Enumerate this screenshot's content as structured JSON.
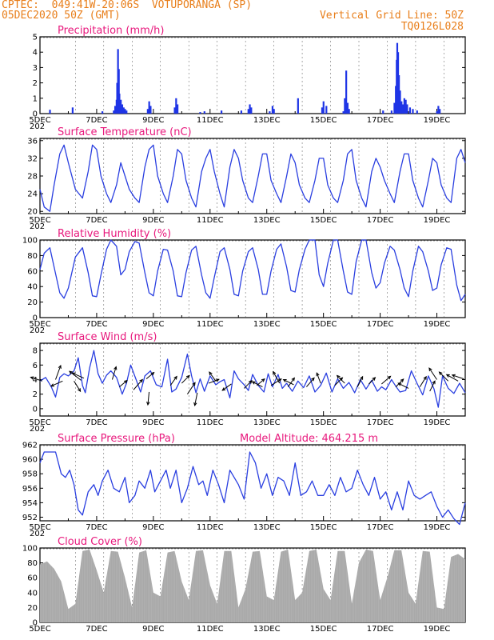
{
  "header": {
    "line1": "CPTEC:  049:41W-20:06S  VOTUPORANGA (SP)",
    "line2": "05DEC2020 50Z (GMT)",
    "right1": "Vertical Grid Line: 50Z",
    "right2": "TQ0126L028"
  },
  "x_labels": [
    "5DEC",
    "7DEC",
    "9DEC",
    "11DEC",
    "13DEC",
    "15DEC",
    "17DEC",
    "19DEC"
  ],
  "x_sublabel": "202",
  "colors": {
    "line": "#2a3fe0",
    "bar": "#1f35e6",
    "cloud": "#a9a9a9",
    "title": "#e8197d",
    "header": "#e87e1a",
    "arrow": "#000000"
  },
  "chart_data": [
    {
      "id": "precip",
      "type": "bar",
      "title": "Precipitation  (mm/h)",
      "ylim": [
        0,
        5
      ],
      "yticks": [
        0,
        1,
        2,
        3,
        4,
        5
      ],
      "x_unit": "days since 5DEC 00Z",
      "xlim": [
        0,
        15
      ],
      "bars": [
        [
          0.35,
          0.25
        ],
        [
          1.15,
          0.4
        ],
        [
          2.2,
          0.15
        ],
        [
          2.6,
          0.2
        ],
        [
          2.65,
          0.5
        ],
        [
          2.7,
          0.9
        ],
        [
          2.72,
          2.0
        ],
        [
          2.75,
          4.2
        ],
        [
          2.78,
          2.9
        ],
        [
          2.8,
          1.3
        ],
        [
          2.85,
          0.9
        ],
        [
          2.9,
          0.6
        ],
        [
          2.95,
          0.4
        ],
        [
          3.0,
          0.3
        ],
        [
          3.05,
          0.2
        ],
        [
          3.8,
          0.3
        ],
        [
          3.85,
          0.8
        ],
        [
          3.9,
          0.5
        ],
        [
          4.75,
          0.4
        ],
        [
          4.8,
          1.0
        ],
        [
          4.85,
          0.6
        ],
        [
          5.65,
          0.1
        ],
        [
          5.8,
          0.15
        ],
        [
          6.4,
          0.2
        ],
        [
          7.1,
          0.2
        ],
        [
          7.35,
          0.3
        ],
        [
          7.4,
          0.6
        ],
        [
          7.45,
          0.4
        ],
        [
          8.1,
          0.15
        ],
        [
          8.2,
          0.5
        ],
        [
          8.25,
          0.3
        ],
        [
          9.1,
          1.0
        ],
        [
          9.95,
          0.4
        ],
        [
          10.0,
          0.8
        ],
        [
          10.1,
          0.5
        ],
        [
          10.7,
          0.15
        ],
        [
          10.75,
          1.0
        ],
        [
          10.8,
          2.8
        ],
        [
          10.85,
          0.7
        ],
        [
          10.9,
          0.3
        ],
        [
          12.1,
          0.2
        ],
        [
          12.4,
          0.2
        ],
        [
          12.5,
          0.7
        ],
        [
          12.55,
          1.8
        ],
        [
          12.58,
          3.5
        ],
        [
          12.6,
          4.6
        ],
        [
          12.63,
          4.0
        ],
        [
          12.66,
          2.5
        ],
        [
          12.7,
          1.5
        ],
        [
          12.75,
          0.8
        ],
        [
          12.8,
          0.6
        ],
        [
          12.85,
          1.0
        ],
        [
          12.9,
          0.9
        ],
        [
          12.95,
          0.6
        ],
        [
          13.05,
          0.4
        ],
        [
          13.15,
          0.3
        ],
        [
          13.3,
          0.2
        ],
        [
          14.0,
          0.15
        ],
        [
          14.05,
          0.5
        ],
        [
          14.1,
          0.3
        ]
      ]
    },
    {
      "id": "temp",
      "type": "line",
      "title": "Surface Temperature (nC)",
      "ylim": [
        19.5,
        36.5
      ],
      "yticks": [
        20,
        24,
        28,
        32,
        36
      ],
      "x_unit": "days since 5DEC 00Z",
      "xlim": [
        0,
        15
      ],
      "x": [
        0,
        0.15,
        0.35,
        0.5,
        0.7,
        0.85,
        1.0,
        1.25,
        1.5,
        1.7,
        1.85,
        2.0,
        2.15,
        2.35,
        2.5,
        2.7,
        2.85,
        3.0,
        3.15,
        3.35,
        3.5,
        3.7,
        3.85,
        4.0,
        4.15,
        4.35,
        4.5,
        4.7,
        4.85,
        5.0,
        5.15,
        5.35,
        5.5,
        5.7,
        5.85,
        6.0,
        6.15,
        6.35,
        6.5,
        6.7,
        6.85,
        7.0,
        7.15,
        7.35,
        7.5,
        7.7,
        7.85,
        8.0,
        8.15,
        8.35,
        8.5,
        8.7,
        8.85,
        9.0,
        9.15,
        9.35,
        9.5,
        9.7,
        9.85,
        10.0,
        10.15,
        10.35,
        10.5,
        10.7,
        10.85,
        11.0,
        11.15,
        11.35,
        11.5,
        11.7,
        11.85,
        12.0,
        12.15,
        12.35,
        12.5,
        12.7,
        12.85,
        13.0,
        13.15,
        13.35,
        13.5,
        13.7,
        13.85,
        14.0,
        14.15,
        14.35,
        14.5,
        14.7,
        14.85,
        15.0
      ],
      "y": [
        25,
        21,
        20,
        26,
        33,
        35,
        31,
        25,
        23,
        29,
        35,
        34,
        28,
        24,
        22,
        26,
        31,
        28,
        25,
        23,
        22,
        30,
        34,
        35,
        28,
        24,
        22,
        28,
        34,
        33,
        27,
        23,
        21,
        29,
        32,
        34,
        29,
        24,
        21,
        30,
        34,
        32,
        27,
        23,
        22,
        28,
        33,
        33,
        27,
        24,
        22,
        28,
        33,
        31,
        26,
        23,
        22,
        27,
        32,
        32,
        26,
        23,
        22,
        27,
        33,
        34,
        27,
        23,
        21,
        29,
        32,
        30,
        27,
        24,
        22,
        29,
        33,
        33,
        27,
        23,
        21,
        27,
        32,
        31,
        26,
        23,
        22,
        32,
        34,
        31
      ]
    },
    {
      "id": "rh",
      "type": "line",
      "title": "Relative Humidity  (%)",
      "ylim": [
        0,
        100
      ],
      "yticks": [
        0,
        20,
        40,
        60,
        80,
        100
      ],
      "x_unit": "days since 5DEC 00Z",
      "xlim": [
        0,
        15
      ],
      "x": [
        0,
        0.15,
        0.35,
        0.5,
        0.7,
        0.85,
        1.0,
        1.25,
        1.5,
        1.7,
        1.85,
        2.0,
        2.15,
        2.35,
        2.5,
        2.7,
        2.85,
        3.0,
        3.15,
        3.35,
        3.5,
        3.7,
        3.85,
        4.0,
        4.15,
        4.35,
        4.5,
        4.7,
        4.85,
        5.0,
        5.15,
        5.35,
        5.5,
        5.7,
        5.85,
        6.0,
        6.15,
        6.35,
        6.5,
        6.7,
        6.85,
        7.0,
        7.15,
        7.35,
        7.5,
        7.7,
        7.85,
        8.0,
        8.15,
        8.35,
        8.5,
        8.7,
        8.85,
        9.0,
        9.15,
        9.35,
        9.5,
        9.7,
        9.85,
        10.0,
        10.15,
        10.35,
        10.5,
        10.7,
        10.85,
        11.0,
        11.15,
        11.35,
        11.5,
        11.7,
        11.85,
        12.0,
        12.15,
        12.35,
        12.5,
        12.7,
        12.85,
        13.0,
        13.15,
        13.35,
        13.5,
        13.7,
        13.85,
        14.0,
        14.15,
        14.35,
        14.5,
        14.7,
        14.85,
        15.0
      ],
      "y": [
        62,
        83,
        90,
        65,
        32,
        25,
        38,
        78,
        90,
        58,
        28,
        27,
        55,
        88,
        100,
        92,
        55,
        62,
        85,
        98,
        96,
        58,
        32,
        28,
        60,
        88,
        87,
        60,
        28,
        27,
        58,
        87,
        92,
        55,
        32,
        25,
        52,
        85,
        90,
        62,
        30,
        28,
        60,
        85,
        90,
        62,
        30,
        30,
        60,
        88,
        95,
        65,
        35,
        33,
        62,
        88,
        100,
        100,
        55,
        40,
        70,
        100,
        100,
        60,
        33,
        30,
        72,
        100,
        100,
        58,
        38,
        45,
        70,
        92,
        87,
        62,
        38,
        27,
        60,
        92,
        85,
        60,
        35,
        38,
        68,
        90,
        88,
        42,
        22,
        30
      ]
    },
    {
      "id": "wind",
      "type": "line",
      "title": "Surface Wind  (m/s)",
      "ylim": [
        -1,
        9
      ],
      "yticks": [
        0,
        2,
        4,
        6,
        8
      ],
      "x_unit": "days since 5DEC 00Z",
      "xlim": [
        0,
        15
      ],
      "x": [
        0,
        0.2,
        0.4,
        0.55,
        0.7,
        0.85,
        1.0,
        1.2,
        1.35,
        1.5,
        1.6,
        1.75,
        1.9,
        2.05,
        2.2,
        2.35,
        2.5,
        2.7,
        2.9,
        3.05,
        3.2,
        3.4,
        3.55,
        3.7,
        3.9,
        4.1,
        4.3,
        4.5,
        4.65,
        4.8,
        5.0,
        5.2,
        5.35,
        5.5,
        5.65,
        5.8,
        6.0,
        6.2,
        6.35,
        6.5,
        6.7,
        6.85,
        7.0,
        7.2,
        7.35,
        7.5,
        7.7,
        7.9,
        8.05,
        8.2,
        8.4,
        8.55,
        8.7,
        8.9,
        9.1,
        9.3,
        9.5,
        9.7,
        9.9,
        10.1,
        10.3,
        10.5,
        10.7,
        10.9,
        11.1,
        11.3,
        11.5,
        11.7,
        11.9,
        12.05,
        12.2,
        12.4,
        12.55,
        12.7,
        12.9,
        13.1,
        13.3,
        13.5,
        13.7,
        13.9,
        14.05,
        14.2,
        14.4,
        14.6,
        14.8,
        15.0
      ],
      "y": [
        3.8,
        4.3,
        3.0,
        1.6,
        4.3,
        4.8,
        4.5,
        5.2,
        7.0,
        3.2,
        2.2,
        5.6,
        8.0,
        4.8,
        3.5,
        4.6,
        5.2,
        4.3,
        2.0,
        3.5,
        6.0,
        3.9,
        2.3,
        4.5,
        5.2,
        3.3,
        3.0,
        6.8,
        2.3,
        2.7,
        4.3,
        7.5,
        4.5,
        2.2,
        4.1,
        2.4,
        4.5,
        3.3,
        3.7,
        4.0,
        1.5,
        5.2,
        4.1,
        3.3,
        2.5,
        4.7,
        3.2,
        2.3,
        4.8,
        3.0,
        4.7,
        2.8,
        3.5,
        2.4,
        3.8,
        2.9,
        4.5,
        2.3,
        3.2,
        4.9,
        2.3,
        4.1,
        2.8,
        3.6,
        2.2,
        4.0,
        2.7,
        3.9,
        2.4,
        3.0,
        2.6,
        4.0,
        3.1,
        2.3,
        2.5,
        5.2,
        3.5,
        1.9,
        4.5,
        2.7,
        0.2,
        4.5,
        2.8,
        2.1,
        3.5,
        2.2
      ],
      "arrows": [
        [
          0.08,
          3.8,
          -0.9,
          0.3
        ],
        [
          0.55,
          4.0,
          0.4,
          1.1
        ],
        [
          0.8,
          3.8,
          -0.9,
          -0.4
        ],
        [
          1.2,
          3.8,
          0.5,
          -0.8
        ],
        [
          1.45,
          3.9,
          -0.9,
          0.7
        ],
        [
          1.55,
          4.2,
          -0.9,
          0.4
        ],
        [
          2.55,
          4.0,
          0.3,
          1.0
        ],
        [
          2.8,
          3.0,
          0.6,
          0.5
        ],
        [
          3.3,
          2.6,
          0.7,
          0.8
        ],
        [
          3.75,
          4.1,
          0.6,
          0.5
        ],
        [
          3.85,
          2.3,
          -0.1,
          -1.0
        ],
        [
          4.6,
          3.2,
          0.5,
          0.7
        ],
        [
          5.0,
          3.5,
          0.6,
          0.6
        ],
        [
          5.2,
          2.0,
          0.6,
          0.9
        ],
        [
          5.55,
          2.2,
          -0.2,
          -1.0
        ],
        [
          5.95,
          3.5,
          0.8,
          0.3
        ],
        [
          6.2,
          3.8,
          -0.5,
          0.7
        ],
        [
          6.75,
          3.4,
          -0.7,
          -0.5
        ],
        [
          7.2,
          2.8,
          0.6,
          0.6
        ],
        [
          7.65,
          3.2,
          0.6,
          0.5
        ],
        [
          7.85,
          3.0,
          -0.8,
          0.4
        ],
        [
          8.15,
          3.2,
          0.8,
          0.5
        ],
        [
          8.45,
          3.5,
          -0.5,
          0.9
        ],
        [
          8.75,
          3.0,
          0.5,
          0.7
        ],
        [
          8.95,
          3.3,
          -0.8,
          0.4
        ],
        [
          9.4,
          3.0,
          0.6,
          0.7
        ],
        [
          9.9,
          3.5,
          -0.3,
          0.8
        ],
        [
          10.4,
          3.2,
          0.6,
          0.6
        ],
        [
          10.75,
          3.5,
          -0.6,
          0.6
        ],
        [
          11.2,
          3.0,
          0.4,
          0.8
        ],
        [
          11.6,
          3.4,
          0.5,
          0.5
        ],
        [
          12.05,
          3.4,
          0.7,
          0.6
        ],
        [
          12.55,
          3.0,
          0.6,
          0.6
        ],
        [
          13.0,
          2.8,
          -0.8,
          0.4
        ],
        [
          13.4,
          3.0,
          0.5,
          0.8
        ],
        [
          13.75,
          2.4,
          0.4,
          0.8
        ],
        [
          14.0,
          4.0,
          -0.6,
          0.9
        ],
        [
          14.4,
          3.8,
          -0.7,
          0.7
        ],
        [
          14.75,
          3.8,
          -0.9,
          0.5
        ],
        [
          14.95,
          4.1,
          -0.9,
          0.3
        ]
      ]
    },
    {
      "id": "pressure",
      "type": "line",
      "title": "Surface Pressure (hPa)",
      "annotation": "Model Altitude: 464.215 m",
      "ylim": [
        951.5,
        962
      ],
      "yticks": [
        952,
        954,
        956,
        958,
        960,
        962
      ],
      "x_unit": "days since 5DEC 00Z",
      "xlim": [
        0,
        15
      ],
      "x": [
        0,
        0.15,
        0.35,
        0.55,
        0.75,
        0.9,
        1.05,
        1.2,
        1.35,
        1.5,
        1.7,
        1.9,
        2.05,
        2.2,
        2.4,
        2.6,
        2.8,
        3.0,
        3.15,
        3.35,
        3.5,
        3.7,
        3.9,
        4.05,
        4.25,
        4.45,
        4.6,
        4.8,
        5.0,
        5.2,
        5.4,
        5.6,
        5.75,
        5.9,
        6.1,
        6.3,
        6.5,
        6.7,
        6.85,
        7.0,
        7.2,
        7.4,
        7.6,
        7.8,
        8.0,
        8.2,
        8.4,
        8.6,
        8.8,
        9.0,
        9.2,
        9.4,
        9.6,
        9.8,
        10.0,
        10.2,
        10.4,
        10.6,
        10.8,
        11.0,
        11.2,
        11.4,
        11.6,
        11.8,
        12.0,
        12.2,
        12.4,
        12.6,
        12.8,
        13.0,
        13.2,
        13.4,
        13.6,
        13.8,
        14.0,
        14.2,
        14.4,
        14.6,
        14.8,
        15.0
      ],
      "y": [
        959.5,
        961,
        961,
        961,
        958,
        957.5,
        958.5,
        956.5,
        953,
        952.3,
        955.5,
        956.5,
        955,
        957,
        958.5,
        956,
        955.5,
        957.5,
        954,
        955,
        957,
        956,
        958.5,
        955.5,
        957,
        958.5,
        956,
        958.5,
        954,
        956,
        959,
        956.5,
        957,
        955,
        958.5,
        956.5,
        954,
        958.5,
        957.5,
        956.5,
        954.5,
        961,
        959.5,
        956,
        958,
        955,
        957.5,
        957,
        955,
        959.5,
        955,
        955.5,
        957,
        955,
        955,
        956.5,
        955,
        957.5,
        955.5,
        956,
        958.5,
        956.5,
        955,
        957.5,
        954.5,
        955.5,
        953,
        955.5,
        953,
        957,
        955,
        954.5,
        955,
        955.5,
        953.5,
        952,
        953,
        951.8,
        951,
        954
      ]
    },
    {
      "id": "cloud",
      "type": "bar",
      "title": "Cloud Cover  (%)",
      "ylim": [
        0,
        100
      ],
      "yticks": [
        0,
        20,
        40,
        60,
        80,
        100
      ],
      "x_unit": "days since 5DEC 00Z",
      "xlim": [
        0,
        15
      ],
      "x": [
        0,
        0.25,
        0.5,
        0.75,
        1.0,
        1.25,
        1.5,
        1.75,
        2.0,
        2.25,
        2.5,
        2.75,
        3.0,
        3.25,
        3.5,
        3.75,
        4.0,
        4.25,
        4.5,
        4.75,
        5.0,
        5.25,
        5.5,
        5.75,
        6.0,
        6.25,
        6.5,
        6.75,
        7.0,
        7.25,
        7.5,
        7.75,
        8.0,
        8.25,
        8.5,
        8.75,
        9.0,
        9.25,
        9.5,
        9.75,
        10.0,
        10.25,
        10.5,
        10.75,
        11.0,
        11.25,
        11.5,
        11.75,
        12.0,
        12.25,
        12.5,
        12.75,
        13.0,
        13.25,
        13.5,
        13.75,
        14.0,
        14.25,
        14.5,
        14.75,
        15.0
      ],
      "y": [
        78,
        82,
        72,
        55,
        18,
        25,
        96,
        98,
        70,
        40,
        96,
        95,
        60,
        20,
        94,
        97,
        40,
        35,
        94,
        96,
        55,
        30,
        96,
        97,
        50,
        25,
        96,
        96,
        20,
        45,
        95,
        96,
        35,
        30,
        95,
        98,
        30,
        40,
        96,
        98,
        45,
        30,
        96,
        96,
        25,
        80,
        98,
        96,
        30,
        60,
        97,
        97,
        40,
        25,
        96,
        95,
        20,
        18,
        88,
        92,
        85
      ]
    }
  ]
}
